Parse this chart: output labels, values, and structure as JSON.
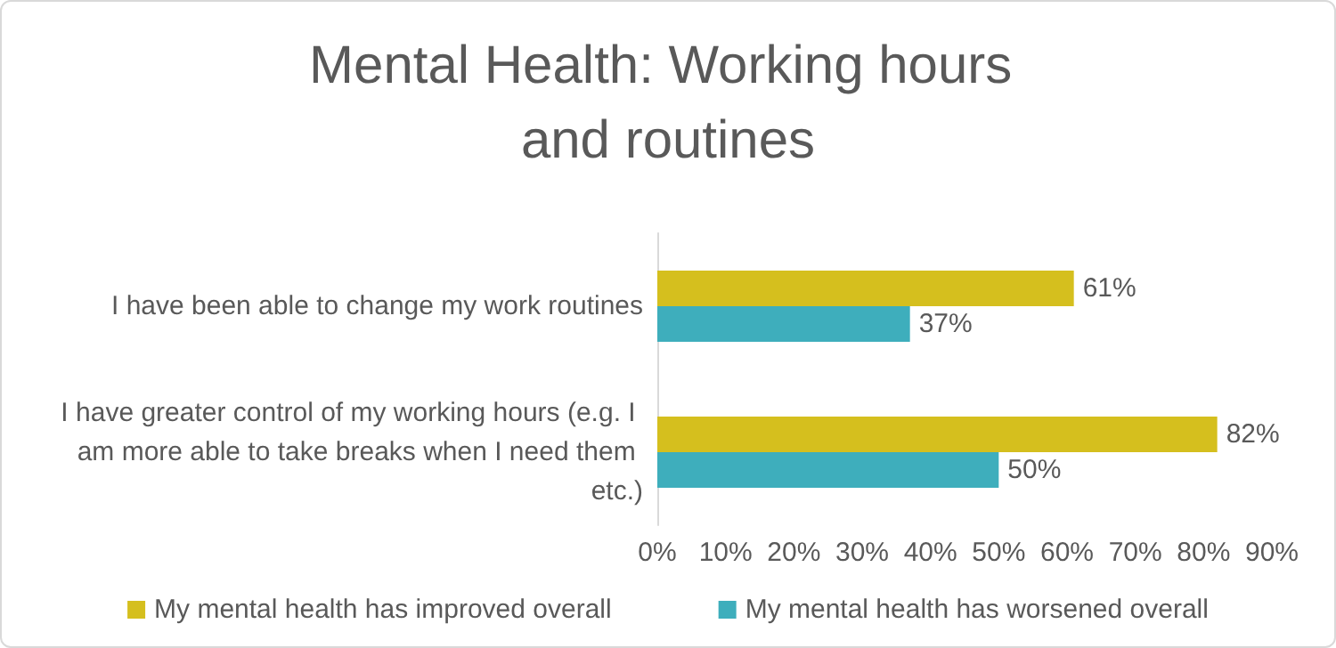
{
  "chart_data": {
    "type": "bar",
    "orientation": "horizontal",
    "title": "Mental Health: Working hours and routines",
    "categories": [
      "I have been able to change my work routines",
      "I have greater control of my working hours (e.g. I am more able to take breaks when I need them etc.)"
    ],
    "series": [
      {
        "name": "My mental health has improved overall",
        "color": "#d5bf1e",
        "values": [
          61,
          82
        ],
        "value_labels": [
          "61%",
          "82%"
        ]
      },
      {
        "name": "My mental health has worsened overall",
        "color": "#3eaebc",
        "values": [
          37,
          50
        ],
        "value_labels": [
          "37%",
          "50%"
        ]
      }
    ],
    "xlim": [
      0,
      90
    ],
    "xticks": [
      {
        "value": 0,
        "label": "0%"
      },
      {
        "value": 10,
        "label": "10%"
      },
      {
        "value": 20,
        "label": "20%"
      },
      {
        "value": 30,
        "label": "30%"
      },
      {
        "value": 40,
        "label": "40%"
      },
      {
        "value": 50,
        "label": "50%"
      },
      {
        "value": 60,
        "label": "60%"
      },
      {
        "value": 70,
        "label": "70%"
      },
      {
        "value": 80,
        "label": "80%"
      },
      {
        "value": 90,
        "label": "90%"
      }
    ],
    "grid": false,
    "legend": "bottom"
  }
}
